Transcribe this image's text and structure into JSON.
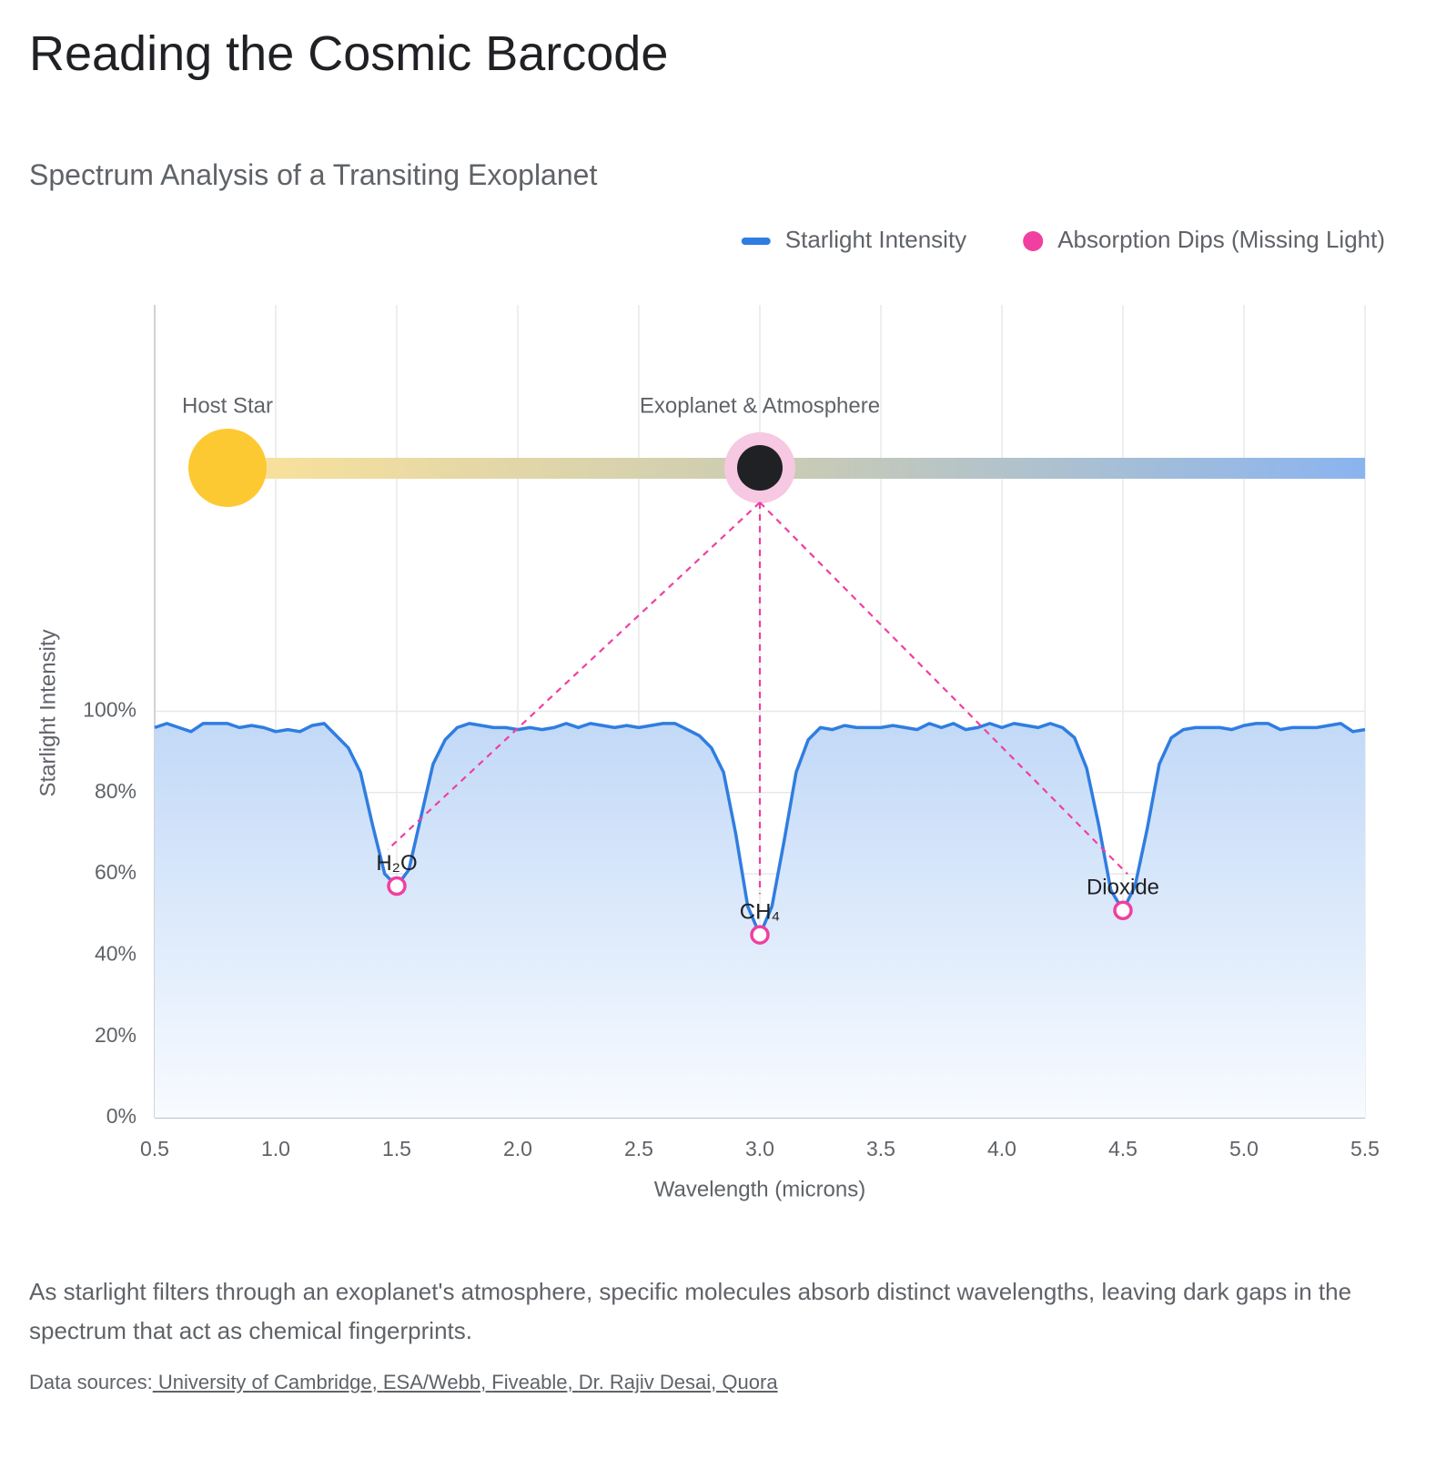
{
  "chart_data": {
    "type": "line",
    "title": "Reading the Cosmic Barcode",
    "subtitle": "Spectrum Analysis of a Transiting Exoplanet",
    "x_label": "Wavelength (microns)",
    "y_label": "Starlight Intensity",
    "annotations": [
      "Host Star",
      "Exoplanet & Atmosphere"
    ],
    "legend": "top-right",
    "grid": true,
    "xlim": [
      0.5,
      5.5
    ],
    "xticks": [
      0.5,
      {
        "value": 1,
        "label": "1.0"
      },
      1.5,
      {
        "value": 2,
        "label": "2.0"
      },
      2.5,
      {
        "value": 3,
        "label": "3.0"
      },
      3.5,
      {
        "value": 4,
        "label": "4.0"
      },
      4.5,
      {
        "value": 5,
        "label": "5.0"
      },
      5.5
    ],
    "ylim": [
      0,
      200
    ],
    "yticks": [
      {
        "value": 0,
        "label": "0%"
      },
      {
        "value": 20,
        "label": "20%"
      },
      {
        "value": 40,
        "label": "40%"
      },
      {
        "value": 60,
        "label": "60%"
      },
      {
        "value": 80,
        "label": "80%"
      },
      {
        "value": 100,
        "label": "100%"
      }
    ],
    "x": [
      0.5,
      0.55,
      0.6,
      0.65,
      0.7,
      0.75,
      0.8,
      0.85,
      0.9,
      0.95,
      1,
      1.05,
      1.1,
      1.15,
      1.2,
      1.25,
      1.3,
      1.35,
      1.4,
      1.45,
      1.5,
      1.55,
      1.6,
      1.65,
      1.7,
      1.75,
      1.8,
      1.85,
      1.9,
      1.95,
      2,
      2.05,
      2.1,
      2.15,
      2.2,
      2.25,
      2.3,
      2.35,
      2.4,
      2.45,
      2.5,
      2.55,
      2.6,
      2.65,
      2.7,
      2.75,
      2.8,
      2.85,
      2.9,
      2.95,
      3,
      3.05,
      3.1,
      3.15,
      3.2,
      3.25,
      3.3,
      3.35,
      3.4,
      3.45,
      3.5,
      3.55,
      3.6,
      3.65,
      3.7,
      3.75,
      3.8,
      3.85,
      3.9,
      3.95,
      4,
      4.05,
      4.1,
      4.15,
      4.2,
      4.25,
      4.3,
      4.35,
      4.4,
      4.45,
      4.5,
      4.55,
      4.6,
      4.65,
      4.7,
      4.75,
      4.8,
      4.85,
      4.9,
      4.95,
      5,
      5.05,
      5.1,
      5.15,
      5.2,
      5.25,
      5.3,
      5.35,
      5.4,
      5.45,
      5.5
    ],
    "series": [
      {
        "name": "Starlight Intensity",
        "color": "#2f7de1",
        "values": [
          96,
          97,
          96,
          95,
          97,
          97,
          97,
          96,
          96.5,
          96,
          95,
          95.5,
          95,
          96.5,
          97,
          94,
          91,
          85,
          72,
          60,
          57,
          61,
          74,
          87,
          93,
          96,
          97,
          96.5,
          96,
          96,
          95.5,
          96,
          95.5,
          96,
          97,
          96,
          97,
          96.5,
          96,
          96.5,
          96,
          96.5,
          97,
          97,
          95.5,
          94,
          91,
          85,
          70,
          52,
          45,
          52,
          68,
          85,
          93,
          96,
          95.5,
          96.5,
          96,
          96,
          96,
          96.5,
          96,
          95.5,
          97,
          96,
          97,
          95.5,
          96,
          97,
          96,
          97,
          96.5,
          96,
          97,
          96,
          93.5,
          86,
          72,
          56,
          51,
          57,
          71,
          87,
          93.5,
          95.5,
          96,
          96,
          96,
          95.5,
          96.5,
          97,
          97,
          95.5,
          96,
          96,
          96,
          96.5,
          97,
          95,
          95.5
        ]
      },
      {
        "name": "Absorption Dips (Missing Light)",
        "color": "#f03fa0",
        "type": "scatter",
        "x": [
          1.5,
          3,
          4.5
        ],
        "values": [
          57,
          45,
          51
        ],
        "point_labels": [
          "H₂O",
          "CH₄",
          "Dioxide"
        ]
      }
    ],
    "description": "As starlight filters through an exoplanet's atmosphere, specific molecules absorb distinct wavelengths, leaving dark gaps in the spectrum that act as chemical fingerprints.",
    "sources_label": "Data sources:",
    "sources": [
      "University of Cambridge",
      "ESA/Webb",
      "Fiveable",
      "Dr. Rajiv Desai",
      "Quora"
    ]
  }
}
